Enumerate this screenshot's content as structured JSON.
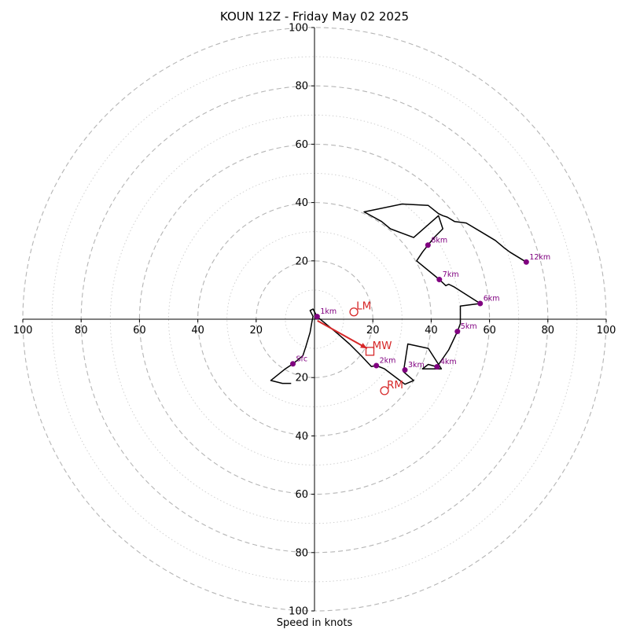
{
  "chart_data": {
    "type": "hodograph",
    "title": "KOUN 12Z - Friday May 02 2025",
    "xlabel": "Speed in knots",
    "units": "knots",
    "range": [
      -100,
      100
    ],
    "major_ring_step": 20,
    "minor_ring_step": 10,
    "tick_labels": {
      "x_negative": [
        "100",
        "80",
        "60",
        "40",
        "20"
      ],
      "x_positive": [
        "20",
        "40",
        "60",
        "80",
        "100"
      ],
      "y_positive": [
        "20",
        "40",
        "60",
        "80",
        "100"
      ],
      "y_negative": [
        "20",
        "40",
        "60",
        "80",
        "100"
      ]
    },
    "trace": {
      "color": "#000000",
      "points": [
        [
          -8,
          -22
        ],
        [
          -10,
          -22
        ],
        [
          -11,
          -22
        ],
        [
          -15,
          -21
        ],
        [
          -10,
          -17
        ],
        [
          -7.4,
          -15.3
        ],
        [
          -4,
          -12.5
        ],
        [
          -3,
          -9.5
        ],
        [
          -1.5,
          -4.5
        ],
        [
          -1,
          -1.5
        ],
        [
          -0.5,
          1
        ],
        [
          -1.5,
          3
        ],
        [
          -0.5,
          3.5
        ],
        [
          0.9,
          0.9
        ],
        [
          8,
          -5
        ],
        [
          12,
          -8.5
        ],
        [
          16,
          -12.5
        ],
        [
          19.5,
          -16.2
        ],
        [
          21.2,
          -15.9
        ],
        [
          24,
          -17
        ],
        [
          31,
          -22.3
        ],
        [
          34,
          -21
        ],
        [
          30.5,
          -18
        ],
        [
          32,
          -8.5
        ],
        [
          39,
          -10
        ],
        [
          43.5,
          -17
        ],
        [
          37,
          -17
        ],
        [
          39,
          -15.5
        ],
        [
          42,
          -16.3
        ],
        [
          46,
          -10.5
        ],
        [
          49,
          -4.2
        ],
        [
          50,
          -1.5
        ],
        [
          50,
          4.5
        ],
        [
          56.8,
          5.4
        ],
        [
          48,
          11
        ],
        [
          46,
          12
        ],
        [
          45,
          11.5
        ],
        [
          42.8,
          13.6
        ],
        [
          35,
          20
        ],
        [
          37,
          23
        ],
        [
          38.9,
          25.4
        ],
        [
          41,
          28
        ],
        [
          44,
          31
        ],
        [
          42.5,
          35.5
        ],
        [
          34,
          28
        ],
        [
          26,
          31
        ],
        [
          23,
          33.5
        ],
        [
          17,
          36.8
        ],
        [
          30,
          39.5
        ],
        [
          39,
          39
        ],
        [
          42.5,
          36.2
        ],
        [
          44,
          35.5
        ],
        [
          45.5,
          35
        ],
        [
          48,
          33.5
        ],
        [
          52,
          33
        ],
        [
          57,
          30
        ],
        [
          62,
          27
        ],
        [
          65,
          24.5
        ],
        [
          67,
          23
        ],
        [
          72.6,
          19.6
        ]
      ]
    },
    "height_markers": {
      "color": "#800080",
      "points": [
        {
          "label": "Sfc",
          "u": -7.4,
          "v": -15.3
        },
        {
          "label": "1km",
          "u": 0.9,
          "v": 0.9
        },
        {
          "label": "2km",
          "u": 21.2,
          "v": -15.9
        },
        {
          "label": "3km",
          "u": 31,
          "v": -17.4
        },
        {
          "label": "4km",
          "u": 42,
          "v": -16.3
        },
        {
          "label": "5km",
          "u": 49,
          "v": -4.2
        },
        {
          "label": "6km",
          "u": 56.8,
          "v": 5.4
        },
        {
          "label": "7km",
          "u": 42.8,
          "v": 13.6
        },
        {
          "label": "8km",
          "u": 38.9,
          "v": 25.4
        },
        {
          "label": "12km",
          "u": 72.6,
          "v": 19.6
        }
      ]
    },
    "motion_markers": {
      "color": "#d62728",
      "points": [
        {
          "label": "LM",
          "u": 13.5,
          "v": 2.5,
          "marker": "circle"
        },
        {
          "label": "MW",
          "u": 19,
          "v": -11,
          "marker": "square"
        },
        {
          "label": "RM",
          "u": 24,
          "v": -24.5,
          "marker": "circle"
        }
      ],
      "mean_wind_arrow": {
        "from": [
          1,
          -0.5
        ],
        "to": [
          18,
          -10
        ]
      }
    }
  }
}
